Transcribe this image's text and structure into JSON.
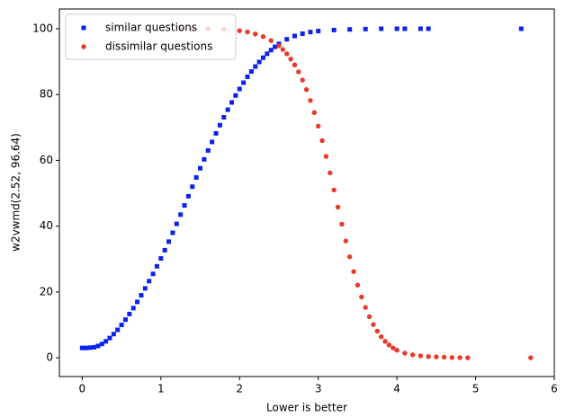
{
  "chart_data": {
    "type": "scatter",
    "xlabel": "Lower is better",
    "ylabel": "w2vwmd(2.52, 96.64)",
    "xlim": [
      -0.29,
      6.0
    ],
    "ylim": [
      -5.7,
      106
    ],
    "xticks": [
      0,
      1,
      2,
      3,
      4,
      5,
      6
    ],
    "yticks": [
      0,
      20,
      40,
      60,
      80,
      100
    ],
    "legend": "upper left",
    "series": [
      {
        "name": "similar questions",
        "color": "#0a22f0",
        "marker": "square",
        "x": [
          0,
          0.05,
          0.1,
          0.15,
          0.2,
          0.25,
          0.3,
          0.35,
          0.4,
          0.45,
          0.5,
          0.55,
          0.6,
          0.65,
          0.7,
          0.75,
          0.8,
          0.85,
          0.9,
          0.95,
          1.0,
          1.05,
          1.1,
          1.15,
          1.2,
          1.25,
          1.3,
          1.35,
          1.4,
          1.45,
          1.5,
          1.55,
          1.6,
          1.65,
          1.7,
          1.75,
          1.8,
          1.85,
          1.9,
          1.95,
          2.0,
          2.05,
          2.1,
          2.15,
          2.2,
          2.25,
          2.3,
          2.35,
          2.4,
          2.45,
          2.5,
          2.6,
          2.7,
          2.8,
          2.9,
          3.0,
          3.2,
          3.4,
          3.6,
          3.8,
          4.0,
          4.1,
          4.3,
          4.4,
          5.58
        ],
        "values": [
          3.0,
          3.0,
          3.1,
          3.2,
          3.6,
          4.2,
          5.0,
          6.0,
          7.2,
          8.5,
          10.0,
          11.6,
          13.3,
          15.1,
          17.0,
          19.0,
          21.1,
          23.3,
          25.5,
          27.8,
          30.2,
          32.7,
          35.3,
          38.0,
          40.7,
          43.5,
          46.3,
          49.1,
          52.0,
          54.8,
          57.6,
          60.3,
          63.0,
          65.6,
          68.2,
          70.7,
          73.1,
          75.4,
          77.6,
          79.7,
          81.7,
          83.6,
          85.4,
          87.0,
          88.5,
          89.9,
          91.2,
          92.4,
          93.5,
          94.5,
          95.4,
          96.8,
          97.8,
          98.5,
          99.0,
          99.3,
          99.6,
          99.8,
          99.9,
          100,
          100,
          100,
          100,
          100,
          100
        ]
      },
      {
        "name": "dissimilar questions",
        "color": "#e8392a",
        "marker": "circle",
        "x": [
          1.25,
          1.4,
          1.6,
          1.8,
          2.0,
          2.1,
          2.2,
          2.3,
          2.4,
          2.5,
          2.55,
          2.6,
          2.65,
          2.7,
          2.75,
          2.8,
          2.85,
          2.9,
          2.95,
          3.0,
          3.05,
          3.1,
          3.15,
          3.2,
          3.25,
          3.3,
          3.35,
          3.4,
          3.45,
          3.5,
          3.55,
          3.6,
          3.65,
          3.7,
          3.75,
          3.8,
          3.85,
          3.9,
          3.95,
          4.0,
          4.1,
          4.2,
          4.3,
          4.4,
          4.5,
          4.6,
          4.7,
          4.8,
          4.9,
          5.7
        ],
        "values": [
          100,
          100,
          100,
          99.8,
          99.4,
          99.0,
          98.4,
          97.6,
          96.4,
          94.8,
          93.7,
          92.4,
          90.8,
          89.0,
          86.9,
          84.4,
          81.5,
          78.2,
          74.5,
          70.4,
          66.0,
          61.2,
          56.2,
          51.0,
          45.8,
          40.6,
          35.5,
          30.7,
          26.2,
          22.1,
          18.5,
          15.3,
          12.5,
          10.1,
          8.1,
          6.4,
          5.0,
          3.9,
          3.0,
          2.3,
          1.4,
          0.9,
          0.6,
          0.4,
          0.3,
          0.2,
          0.1,
          0.05,
          0,
          0
        ]
      }
    ]
  }
}
